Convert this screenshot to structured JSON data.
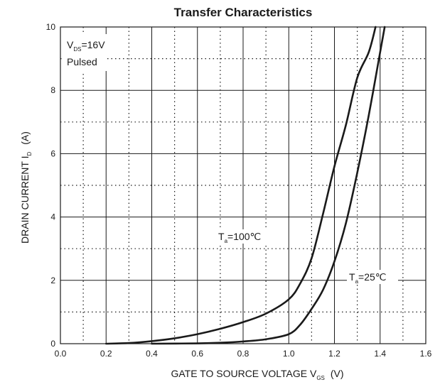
{
  "chart_data": {
    "type": "line",
    "title": "Transfer Characteristics",
    "xlabel": {
      "main": "GATE TO SOURCE VOLTAGE   V",
      "sub": "GS",
      "unit": "(V)"
    },
    "ylabel": {
      "main": "DRAIN CURRENT   I",
      "sub": "D",
      "unit": "(A)"
    },
    "xlim": [
      0.0,
      1.6
    ],
    "ylim": [
      0,
      10
    ],
    "x_ticks": [
      "0.0",
      "0.2",
      "0.4",
      "0.6",
      "0.8",
      "1.0",
      "1.2",
      "1.4",
      "1.6"
    ],
    "y_ticks": [
      "0",
      "2",
      "4",
      "6",
      "8",
      "10"
    ],
    "grid": true,
    "conditions": {
      "line1_main": "V",
      "line1_sub": "DS",
      "line1_value": "=16V",
      "line2": "Pulsed"
    },
    "series": [
      {
        "label_main": "T",
        "label_sub": "a",
        "label_value": "=100℃",
        "color": "#1a1a1a",
        "points": [
          [
            0.2,
            0.0
          ],
          [
            0.3,
            0.02
          ],
          [
            0.4,
            0.08
          ],
          [
            0.5,
            0.17
          ],
          [
            0.6,
            0.3
          ],
          [
            0.7,
            0.47
          ],
          [
            0.8,
            0.68
          ],
          [
            0.9,
            0.95
          ],
          [
            1.0,
            1.4
          ],
          [
            1.05,
            1.9
          ],
          [
            1.1,
            2.7
          ],
          [
            1.15,
            4.1
          ],
          [
            1.2,
            5.6
          ],
          [
            1.25,
            6.9
          ],
          [
            1.3,
            8.4
          ],
          [
            1.35,
            9.2
          ],
          [
            1.38,
            10.0
          ]
        ]
      },
      {
        "label_main": "T",
        "label_sub": "a",
        "label_value": "=25℃",
        "color": "#1a1a1a",
        "points": [
          [
            0.4,
            0.0
          ],
          [
            0.6,
            0.01
          ],
          [
            0.7,
            0.03
          ],
          [
            0.8,
            0.07
          ],
          [
            0.9,
            0.14
          ],
          [
            1.0,
            0.3
          ],
          [
            1.05,
            0.6
          ],
          [
            1.1,
            1.1
          ],
          [
            1.15,
            1.7
          ],
          [
            1.2,
            2.6
          ],
          [
            1.25,
            3.8
          ],
          [
            1.3,
            5.4
          ],
          [
            1.35,
            7.2
          ],
          [
            1.4,
            9.2
          ],
          [
            1.42,
            10.0
          ]
        ]
      }
    ]
  }
}
